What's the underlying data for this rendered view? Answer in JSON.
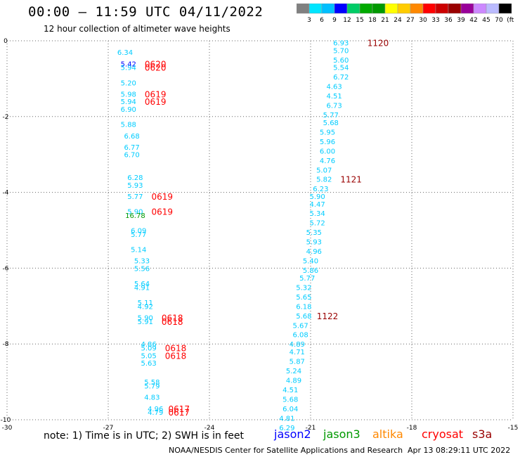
{
  "header": {
    "title": "00:00 – 11:59 UTC 04/11/2022",
    "subtitle": "12 hour collection of altimeter wave heights"
  },
  "color_scale": {
    "labels": [
      "3",
      "6",
      "9",
      "12",
      "15",
      "18",
      "21",
      "24",
      "27",
      "30",
      "33",
      "36",
      "39",
      "42",
      "45",
      "70",
      "(ft)"
    ],
    "colors": [
      "#808080",
      "#00e5ff",
      "#00bfff",
      "#0000ff",
      "#00cc66",
      "#00aa00",
      "#009900",
      "#ffff00",
      "#ffcc00",
      "#ff8800",
      "#ff0000",
      "#cc0000",
      "#990000",
      "#990099",
      "#cc88ff",
      "#bbbbff",
      "#000000"
    ]
  },
  "footer": {
    "note": "note: 1) Time is in UTC; 2) SWH is in feet",
    "missions": [
      {
        "name": "jason2",
        "color": "#0000ff"
      },
      {
        "name": "jason3",
        "color": "#009900"
      },
      {
        "name": "altika",
        "color": "#ff8800"
      },
      {
        "name": "cryosat",
        "color": "#ff0000"
      },
      {
        "name": "s3a",
        "color": "#990000"
      }
    ],
    "credit": "NOAA/NESDIS Center for Satellite Applications and Research",
    "timestamp": "Apr 13 08:29:11 UTC 2022"
  },
  "chart_data": {
    "type": "scatter",
    "xlim": [
      -30,
      -15
    ],
    "ylim": [
      -10,
      0
    ],
    "xticks": [
      "-30",
      "-27",
      "-24",
      "-21",
      "-18",
      "-15"
    ],
    "yticks": [
      "0",
      "-2",
      "-4",
      "-6",
      "-8",
      "-10"
    ],
    "grid": true,
    "series": [
      {
        "name": "cryosat",
        "color": "#ff0000",
        "points": [
          {
            "x": -26.4,
            "y": -0.6,
            "label": "5.42",
            "color": "#0000ff"
          },
          {
            "x": -26.4,
            "y": -0.7,
            "label": "5.94",
            "color": "#00ccff"
          },
          {
            "x": -26.5,
            "y": -0.3,
            "label": "6.34",
            "color": "#00ccff"
          },
          {
            "x": -26.4,
            "y": -1.1,
            "label": "5.20",
            "color": "#00ccff"
          },
          {
            "x": -26.4,
            "y": -1.4,
            "label": "5.98",
            "color": "#00ccff"
          },
          {
            "x": -26.4,
            "y": -1.6,
            "label": "5.94",
            "color": "#00ccff"
          },
          {
            "x": -26.4,
            "y": -1.8,
            "label": "6.90",
            "color": "#00ccff"
          },
          {
            "x": -26.4,
            "y": -2.2,
            "label": "5.88",
            "color": "#00ccff"
          },
          {
            "x": -26.3,
            "y": -2.5,
            "label": "6.68",
            "color": "#00ccff"
          },
          {
            "x": -26.3,
            "y": -2.8,
            "label": "6.77",
            "color": "#00ccff"
          },
          {
            "x": -26.3,
            "y": -3.0,
            "label": "6.70",
            "color": "#00ccff"
          },
          {
            "x": -26.2,
            "y": -3.6,
            "label": "6.28",
            "color": "#00ccff"
          },
          {
            "x": -26.2,
            "y": -3.8,
            "label": "5.93",
            "color": "#00ccff"
          },
          {
            "x": -26.2,
            "y": -4.1,
            "label": "5.77",
            "color": "#00ccff"
          },
          {
            "x": -26.2,
            "y": -4.5,
            "label": "5.90",
            "color": "#00ccff"
          },
          {
            "x": -26.2,
            "y": -4.6,
            "label": "16.78",
            "color": "#009900"
          },
          {
            "x": -26.1,
            "y": -5.0,
            "label": "6.09",
            "color": "#00ccff"
          },
          {
            "x": -26.1,
            "y": -5.1,
            "label": "5.77",
            "color": "#00ccff"
          },
          {
            "x": -26.1,
            "y": -5.5,
            "label": "5.14",
            "color": "#00ccff"
          },
          {
            "x": -26.0,
            "y": -5.8,
            "label": "5.33",
            "color": "#00ccff"
          },
          {
            "x": -26.0,
            "y": -6.0,
            "label": "5.56",
            "color": "#00ccff"
          },
          {
            "x": -26.0,
            "y": -6.4,
            "label": "5.64",
            "color": "#00ccff"
          },
          {
            "x": -26.0,
            "y": -6.5,
            "label": "4.91",
            "color": "#00ccff"
          },
          {
            "x": -25.9,
            "y": -6.9,
            "label": "5.11",
            "color": "#00ccff"
          },
          {
            "x": -25.9,
            "y": -7.0,
            "label": "4.92",
            "color": "#00ccff"
          },
          {
            "x": -25.9,
            "y": -7.3,
            "label": "5.90",
            "color": "#00ccff"
          },
          {
            "x": -25.9,
            "y": -7.4,
            "label": "5.91",
            "color": "#00ccff"
          },
          {
            "x": -25.8,
            "y": -8.0,
            "label": "4.86",
            "color": "#00ccff"
          },
          {
            "x": -25.8,
            "y": -8.1,
            "label": "5.09",
            "color": "#00ccff"
          },
          {
            "x": -25.8,
            "y": -8.3,
            "label": "5.05",
            "color": "#00ccff"
          },
          {
            "x": -25.8,
            "y": -8.5,
            "label": "5.63",
            "color": "#00ccff"
          },
          {
            "x": -25.7,
            "y": -9.0,
            "label": "5.58",
            "color": "#00ccff"
          },
          {
            "x": -25.7,
            "y": -9.1,
            "label": "5.79",
            "color": "#00ccff"
          },
          {
            "x": -25.7,
            "y": -9.4,
            "label": "4.83",
            "color": "#00ccff"
          },
          {
            "x": -25.6,
            "y": -9.7,
            "label": "4.96",
            "color": "#00ccff"
          },
          {
            "x": -25.6,
            "y": -9.8,
            "label": "4.79",
            "color": "#00ccff"
          }
        ],
        "time_labels": [
          {
            "x": -25.6,
            "y": -0.6,
            "label": "0620"
          },
          {
            "x": -25.6,
            "y": -0.7,
            "label": "0620"
          },
          {
            "x": -25.6,
            "y": -1.4,
            "label": "0619"
          },
          {
            "x": -25.6,
            "y": -1.6,
            "label": "0619"
          },
          {
            "x": -25.4,
            "y": -4.1,
            "label": "0619"
          },
          {
            "x": -25.4,
            "y": -4.5,
            "label": "0619"
          },
          {
            "x": -25.1,
            "y": -7.3,
            "label": "0618"
          },
          {
            "x": -25.1,
            "y": -7.4,
            "label": "0618"
          },
          {
            "x": -25.0,
            "y": -8.1,
            "label": "0618"
          },
          {
            "x": -25.0,
            "y": -8.3,
            "label": "0618"
          },
          {
            "x": -24.9,
            "y": -9.7,
            "label": "0617"
          },
          {
            "x": -24.9,
            "y": -9.8,
            "label": "0617"
          }
        ]
      },
      {
        "name": "s3a",
        "color": "#990000",
        "points": [
          {
            "x": -20.1,
            "y": -0.05,
            "label": "6.93",
            "color": "#00ccff"
          },
          {
            "x": -20.1,
            "y": -0.25,
            "label": "5.70",
            "color": "#00ccff"
          },
          {
            "x": -20.1,
            "y": -0.5,
            "label": "5.60",
            "color": "#00ccff"
          },
          {
            "x": -20.1,
            "y": -0.7,
            "label": "5.54",
            "color": "#00ccff"
          },
          {
            "x": -20.1,
            "y": -0.95,
            "label": "6.72",
            "color": "#00ccff"
          },
          {
            "x": -20.3,
            "y": -1.2,
            "label": "4.63",
            "color": "#00ccff"
          },
          {
            "x": -20.3,
            "y": -1.45,
            "label": "4.51",
            "color": "#00ccff"
          },
          {
            "x": -20.3,
            "y": -1.7,
            "label": "6.73",
            "color": "#00ccff"
          },
          {
            "x": -20.4,
            "y": -1.95,
            "label": "5.77",
            "color": "#00ccff"
          },
          {
            "x": -20.4,
            "y": -2.15,
            "label": "5.68",
            "color": "#00ccff"
          },
          {
            "x": -20.5,
            "y": -2.4,
            "label": "5.95",
            "color": "#00ccff"
          },
          {
            "x": -20.5,
            "y": -2.65,
            "label": "5.96",
            "color": "#00ccff"
          },
          {
            "x": -20.5,
            "y": -2.9,
            "label": "6.00",
            "color": "#00ccff"
          },
          {
            "x": -20.5,
            "y": -3.15,
            "label": "4.76",
            "color": "#00ccff"
          },
          {
            "x": -20.6,
            "y": -3.4,
            "label": "5.07",
            "color": "#00ccff"
          },
          {
            "x": -20.6,
            "y": -3.65,
            "label": "5.82",
            "color": "#00ccff"
          },
          {
            "x": -20.7,
            "y": -3.9,
            "label": "6.23",
            "color": "#00ccff"
          },
          {
            "x": -20.8,
            "y": -4.1,
            "label": "5.90",
            "color": "#00ccff"
          },
          {
            "x": -20.8,
            "y": -4.3,
            "label": "4.47",
            "color": "#00ccff"
          },
          {
            "x": -20.8,
            "y": -4.55,
            "label": "5.34",
            "color": "#00ccff"
          },
          {
            "x": -20.8,
            "y": -4.8,
            "label": "5.72",
            "color": "#00ccff"
          },
          {
            "x": -20.9,
            "y": -5.05,
            "label": "5.35",
            "color": "#00ccff"
          },
          {
            "x": -20.9,
            "y": -5.3,
            "label": "5.93",
            "color": "#00ccff"
          },
          {
            "x": -20.9,
            "y": -5.55,
            "label": "4.96",
            "color": "#00ccff"
          },
          {
            "x": -21.0,
            "y": -5.8,
            "label": "5.40",
            "color": "#00ccff"
          },
          {
            "x": -21.0,
            "y": -6.05,
            "label": "5.86",
            "color": "#00ccff"
          },
          {
            "x": -21.1,
            "y": -6.25,
            "label": "5.77",
            "color": "#00ccff"
          },
          {
            "x": -21.2,
            "y": -6.5,
            "label": "5.32",
            "color": "#00ccff"
          },
          {
            "x": -21.2,
            "y": -6.75,
            "label": "5.65",
            "color": "#00ccff"
          },
          {
            "x": -21.2,
            "y": -7.0,
            "label": "6.18",
            "color": "#00ccff"
          },
          {
            "x": -21.2,
            "y": -7.25,
            "label": "5.68",
            "color": "#00ccff"
          },
          {
            "x": -21.3,
            "y": -7.5,
            "label": "5.67",
            "color": "#00ccff"
          },
          {
            "x": -21.3,
            "y": -7.75,
            "label": "6.08",
            "color": "#00ccff"
          },
          {
            "x": -21.4,
            "y": -8.0,
            "label": "4.89",
            "color": "#00ccff"
          },
          {
            "x": -21.4,
            "y": -8.2,
            "label": "4.71",
            "color": "#00ccff"
          },
          {
            "x": -21.4,
            "y": -8.45,
            "label": "5.87",
            "color": "#00ccff"
          },
          {
            "x": -21.5,
            "y": -8.7,
            "label": "5.24",
            "color": "#00ccff"
          },
          {
            "x": -21.5,
            "y": -8.95,
            "label": "4.89",
            "color": "#00ccff"
          },
          {
            "x": -21.6,
            "y": -9.2,
            "label": "4.51",
            "color": "#00ccff"
          },
          {
            "x": -21.6,
            "y": -9.45,
            "label": "5.68",
            "color": "#00ccff"
          },
          {
            "x": -21.6,
            "y": -9.7,
            "label": "6.04",
            "color": "#00ccff"
          },
          {
            "x": -21.7,
            "y": -9.95,
            "label": "4.81",
            "color": "#00ccff"
          },
          {
            "x": -21.7,
            "y": -10.2,
            "label": "6.29",
            "color": "#00ccff"
          }
        ],
        "time_labels": [
          {
            "x": -19.0,
            "y": -0.05,
            "label": "1120"
          },
          {
            "x": -19.8,
            "y": -3.65,
            "label": "1121"
          },
          {
            "x": -20.5,
            "y": -7.25,
            "label": "1122"
          }
        ]
      }
    ]
  }
}
